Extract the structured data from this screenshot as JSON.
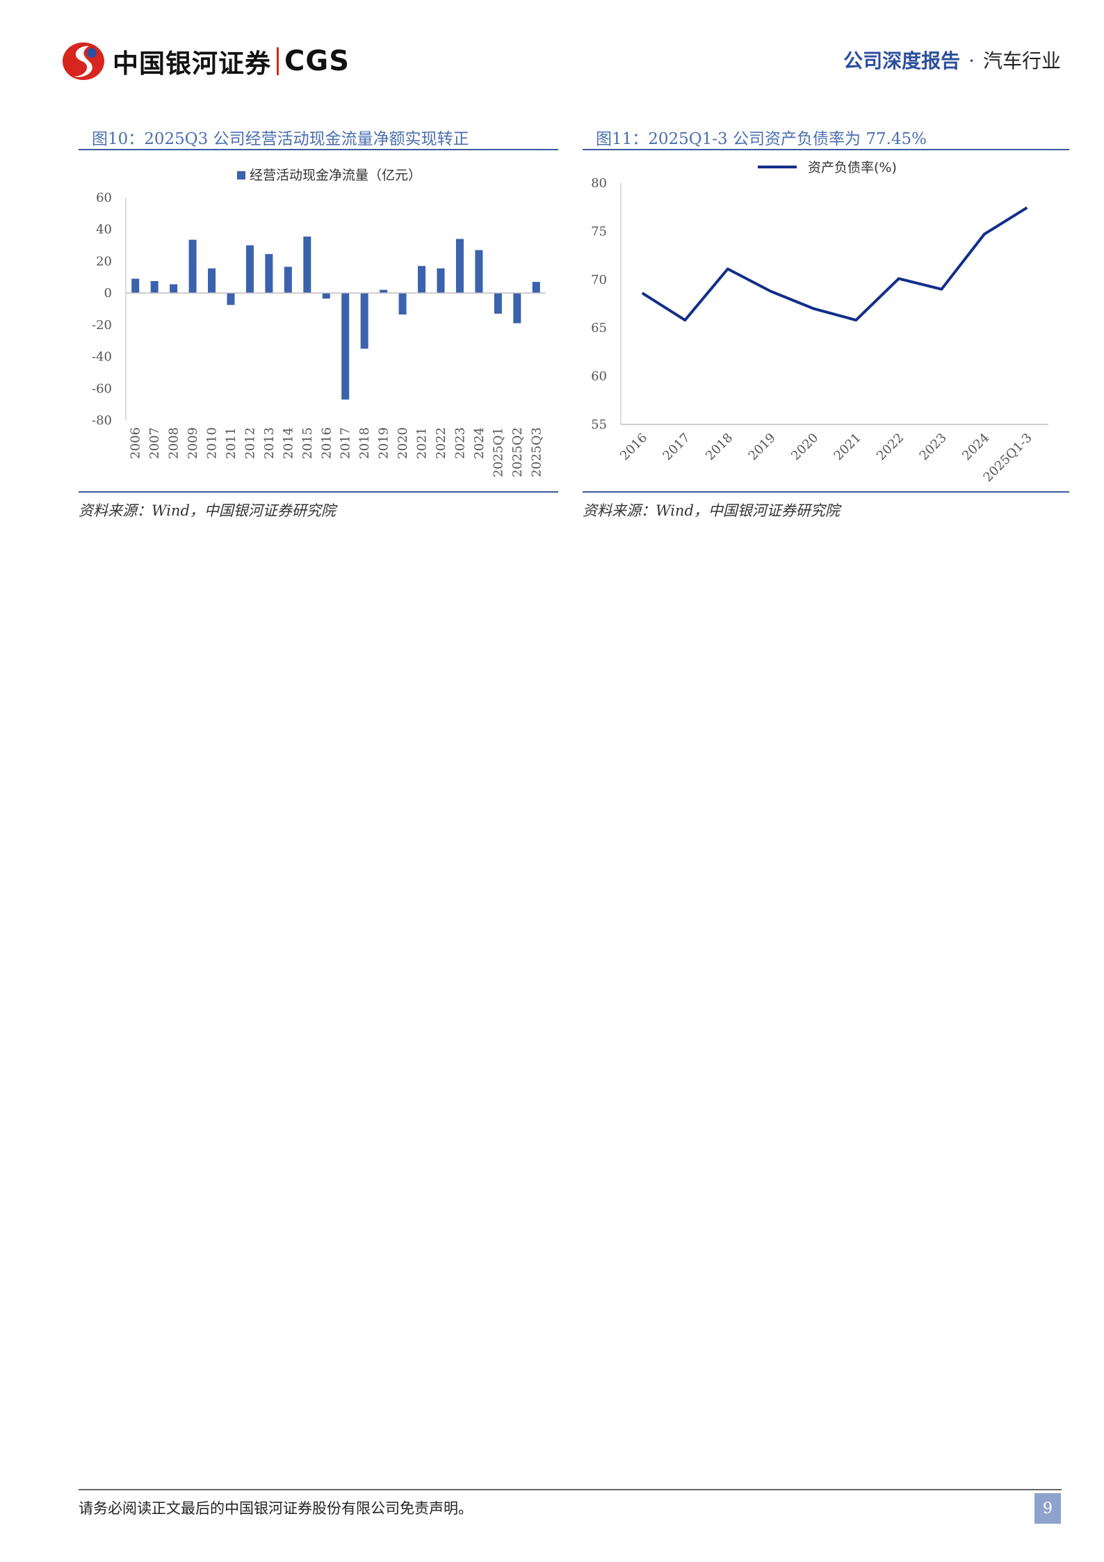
{
  "header": {
    "logo_cn": "中国银河证券",
    "logo_en": "CGS",
    "report_type": "公司深度报告",
    "dot": "·",
    "industry": "汽车行业"
  },
  "figures": [
    {
      "title": "图10：2025Q3 公司经营活动现金流量净额实现转正",
      "source": "资料来源：Wind，中国银河证券研究院"
    },
    {
      "title": "图11：2025Q1-3 公司资产负债率为 77.45%",
      "source": "资料来源：Wind，中国银河证券研究院"
    }
  ],
  "chart_data": [
    {
      "type": "bar",
      "categories": [
        "2006",
        "2007",
        "2008",
        "2009",
        "2010",
        "2011",
        "2012",
        "2013",
        "2014",
        "2015",
        "2016",
        "2017",
        "2018",
        "2019",
        "2020",
        "2021",
        "2022",
        "2023",
        "2024",
        "2025Q1",
        "2025Q2",
        "2025Q3"
      ],
      "series": [
        {
          "name": "经营活动现金净流量（亿元）",
          "values": [
            9,
            7.5,
            5.5,
            33.5,
            15.5,
            -7.5,
            30,
            24.5,
            16.5,
            35.5,
            -3.5,
            -67,
            -35,
            2,
            -13.5,
            17,
            15.5,
            34,
            27,
            -13,
            -19,
            7
          ],
          "color": "#3a62ad"
        }
      ],
      "ylim": [
        -80,
        60
      ],
      "yticks": [
        60,
        40,
        20,
        0,
        -20,
        -40,
        -60,
        -80
      ],
      "legend_position": "top",
      "grid": false
    },
    {
      "type": "line",
      "categories": [
        "2016",
        "2017",
        "2018",
        "2019",
        "2020",
        "2021",
        "2022",
        "2023",
        "2024",
        "2025Q1-3"
      ],
      "series": [
        {
          "name": "资产负债率(%)",
          "values": [
            68.6,
            65.8,
            71.1,
            68.8,
            67.0,
            65.8,
            70.1,
            69.0,
            74.7,
            77.45
          ],
          "color": "#132e8a"
        }
      ],
      "ylim": [
        55,
        80
      ],
      "yticks": [
        80,
        75,
        70,
        65,
        60,
        55
      ],
      "legend_position": "top",
      "grid": false
    }
  ],
  "footer": {
    "disclaimer": "请务必阅读正文最后的中国银河证券股份有限公司免责声明。",
    "page_number": "9"
  }
}
